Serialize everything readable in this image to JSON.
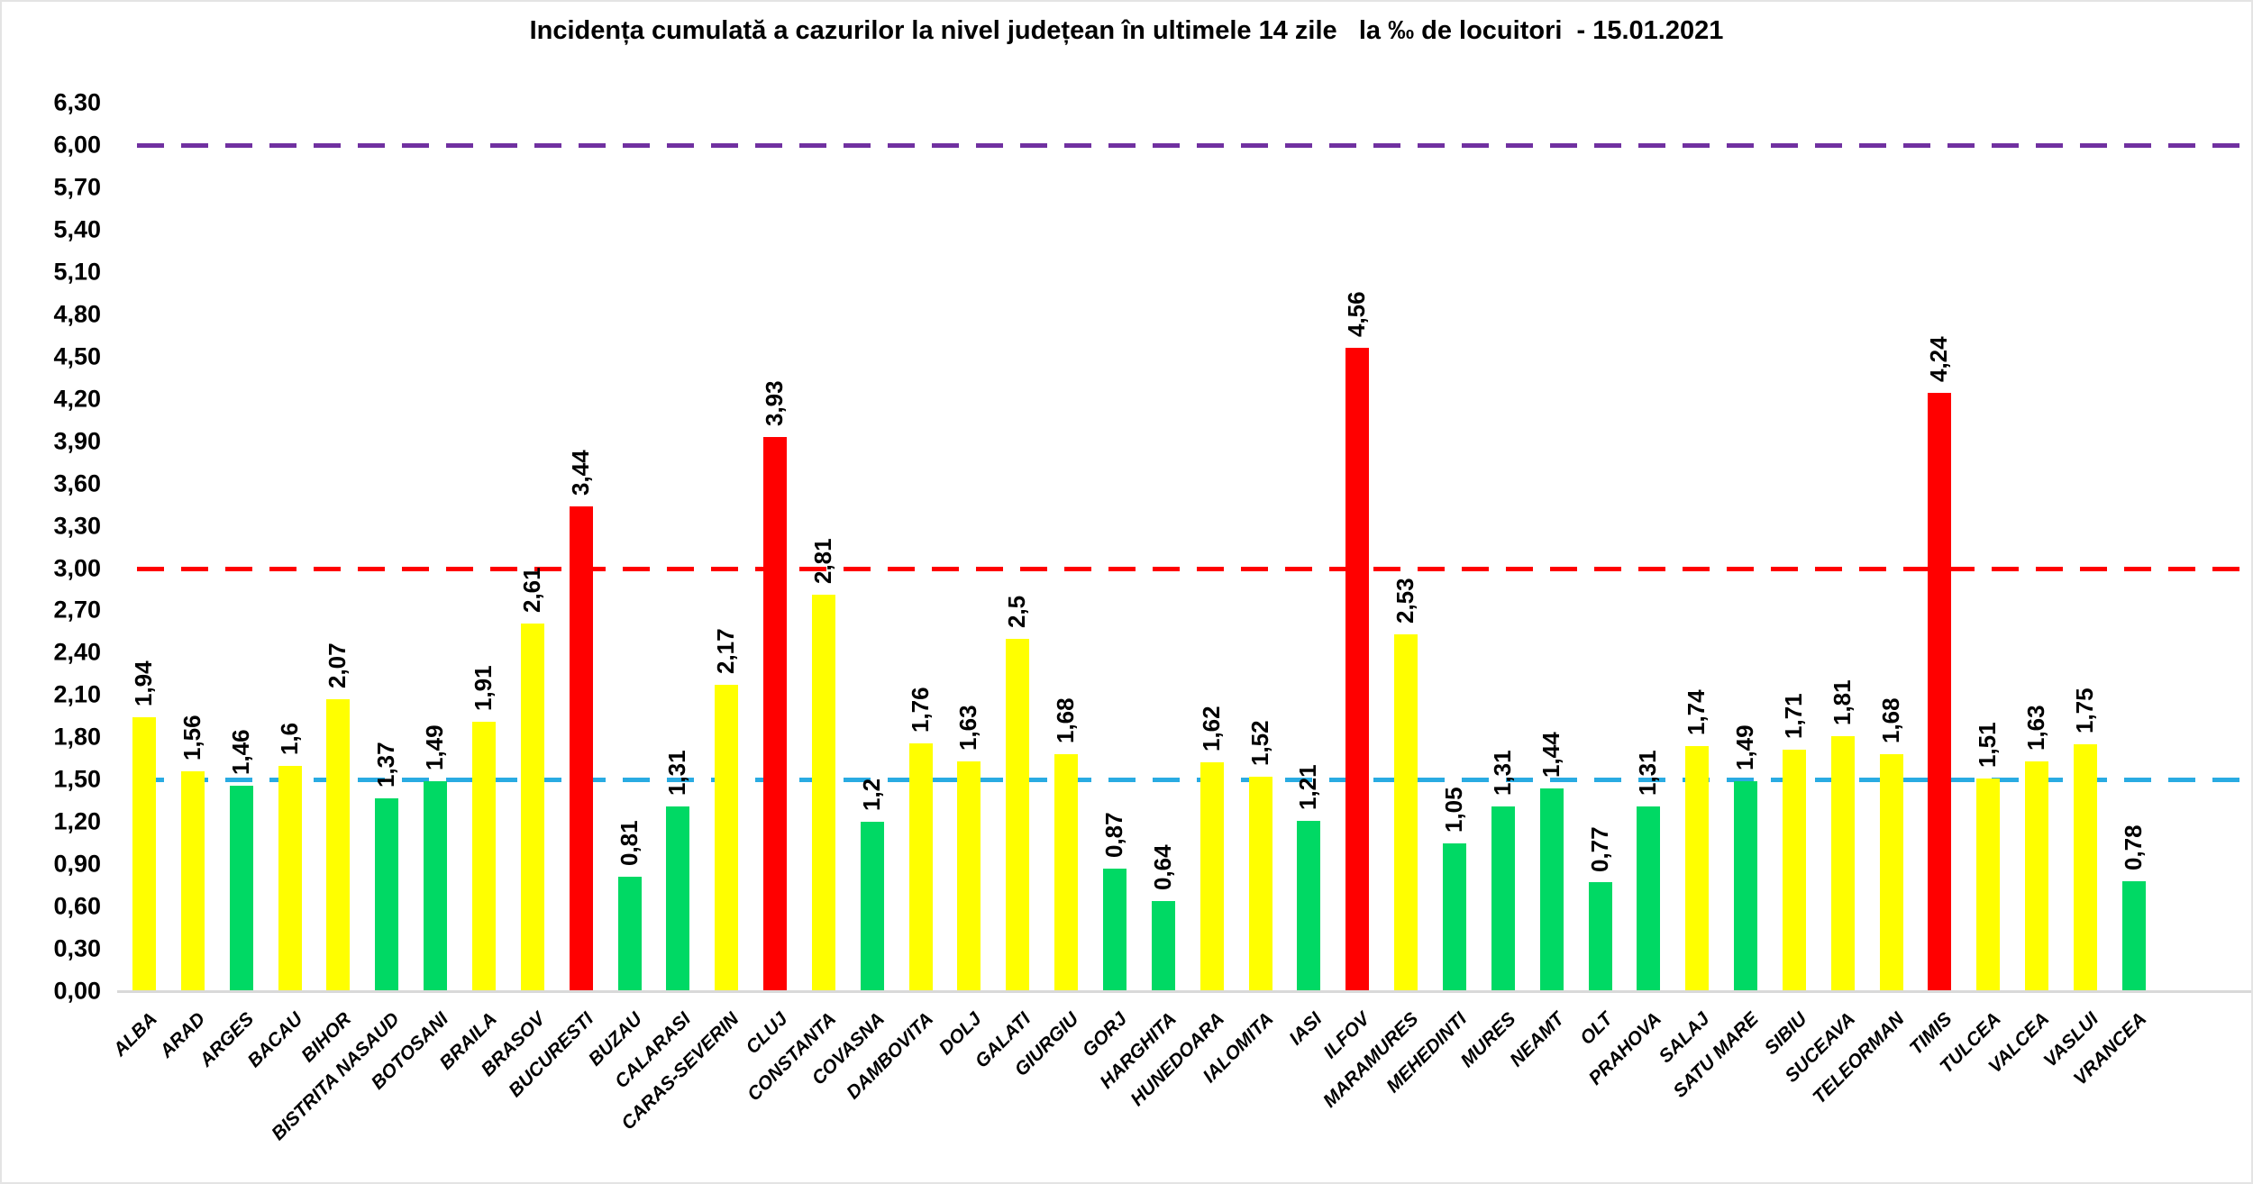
{
  "chart_data": {
    "type": "bar",
    "title": "Incidența cumulată a cazurilor la nivel județean în ultimele 14 zile   la ‰ de locuitori  - 15.01.2021",
    "xlabel": "",
    "ylabel": "",
    "ylim": [
      0,
      6.3
    ],
    "ytick_step": 0.3,
    "yticks": [
      "0,00",
      "0,30",
      "0,60",
      "0,90",
      "1,20",
      "1,50",
      "1,80",
      "2,10",
      "2,40",
      "2,70",
      "3,00",
      "3,30",
      "3,60",
      "3,90",
      "4,20",
      "4,50",
      "4,80",
      "5,10",
      "5,40",
      "5,70",
      "6,00",
      "6,30"
    ],
    "grid": false,
    "legend": null,
    "categories": [
      "ALBA",
      "ARAD",
      "ARGES",
      "BACAU",
      "BIHOR",
      "BISTRITA NASAUD",
      "BOTOSANI",
      "BRAILA",
      "BRASOV",
      "BUCURESTI",
      "BUZAU",
      "CALARASI",
      "CARAS-SEVERIN",
      "CLUJ",
      "CONSTANTA",
      "COVASNA",
      "DAMBOVITA",
      "DOLJ",
      "GALATI",
      "GIURGIU",
      "GORJ",
      "HARGHITA",
      "HUNEDOARA",
      "IALOMITA",
      "IASI",
      "ILFOV",
      "MARAMURES",
      "MEHEDINTI",
      "MURES",
      "NEAMT",
      "OLT",
      "PRAHOVA",
      "SALAJ",
      "SATU MARE",
      "SIBIU",
      "SUCEAVA",
      "TELEORMAN",
      "TIMIS",
      "TULCEA",
      "VALCEA",
      "VASLUI",
      "VRANCEA"
    ],
    "values": [
      1.94,
      1.56,
      1.46,
      1.6,
      2.07,
      1.37,
      1.49,
      1.91,
      2.61,
      3.44,
      0.81,
      1.31,
      2.17,
      3.93,
      2.81,
      1.2,
      1.76,
      1.63,
      2.5,
      1.68,
      0.87,
      0.64,
      1.62,
      1.52,
      1.21,
      4.56,
      2.53,
      1.05,
      1.31,
      1.44,
      0.77,
      1.31,
      1.74,
      1.49,
      1.71,
      1.81,
      1.68,
      4.24,
      1.51,
      1.63,
      1.75,
      0.78
    ],
    "value_labels": [
      "1,94",
      "1,56",
      "1,46",
      "1,6",
      "2,07",
      "1,37",
      "1,49",
      "1,91",
      "2,61",
      "3,44",
      "0,81",
      "1,31",
      "2,17",
      "3,93",
      "2,81",
      "1,2",
      "1,76",
      "1,63",
      "2,5",
      "1,68",
      "0,87",
      "0,64",
      "1,62",
      "1,52",
      "1,21",
      "4,56",
      "2,53",
      "1,05",
      "1,31",
      "1,44",
      "0,77",
      "1,31",
      "1,74",
      "1,49",
      "1,71",
      "1,81",
      "1,68",
      "4,24",
      "1,51",
      "1,63",
      "1,75",
      "0,78"
    ],
    "bar_colors": [
      "yellow",
      "yellow",
      "green",
      "yellow",
      "yellow",
      "green",
      "green",
      "yellow",
      "yellow",
      "red",
      "green",
      "green",
      "yellow",
      "red",
      "yellow",
      "green",
      "yellow",
      "yellow",
      "yellow",
      "yellow",
      "green",
      "green",
      "yellow",
      "yellow",
      "green",
      "red",
      "yellow",
      "green",
      "green",
      "green",
      "green",
      "green",
      "yellow",
      "green",
      "yellow",
      "yellow",
      "yellow",
      "red",
      "yellow",
      "yellow",
      "yellow",
      "green"
    ],
    "palette": {
      "yellow": "#ffff00",
      "green": "#00d964",
      "red": "#ff0000"
    },
    "reference_lines": [
      {
        "value": 1.5,
        "color": "#29abe2"
      },
      {
        "value": 3.0,
        "color": "#ff0000"
      },
      {
        "value": 6.0,
        "color": "#7030a0"
      }
    ]
  }
}
